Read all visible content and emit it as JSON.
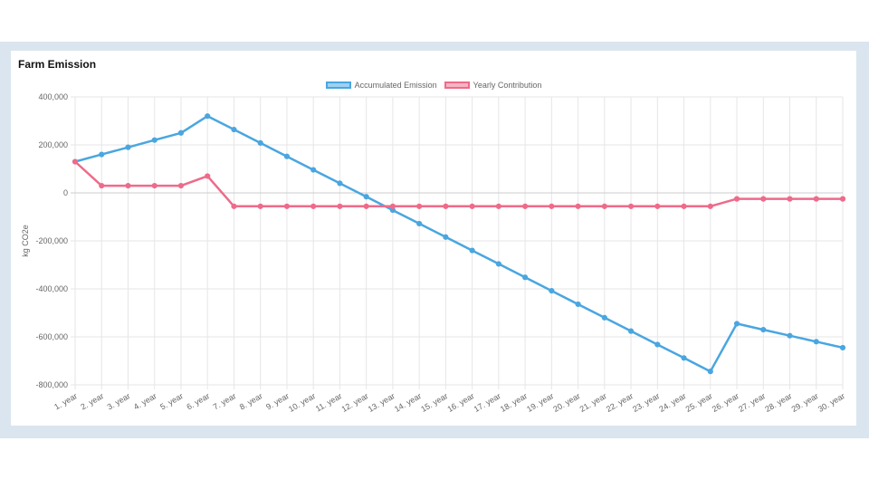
{
  "card": {
    "title": "Farm Emission"
  },
  "chart_data": {
    "type": "line",
    "title": "Farm Emission",
    "xlabel": "",
    "ylabel": "kg CO2e",
    "ylim": [
      -800000,
      400000
    ],
    "yticks": [
      400000,
      200000,
      0,
      -200000,
      -400000,
      -600000,
      -800000
    ],
    "ytick_labels": [
      "400,000",
      "200,000",
      "0",
      "-200,000",
      "-400,000",
      "-600,000",
      "-800,000"
    ],
    "grid": true,
    "legend_position": "top-center",
    "categories": [
      "1. year",
      "2. year",
      "3. year",
      "4. year",
      "5. year",
      "6. year",
      "7. year",
      "8. year",
      "9. year",
      "10. year",
      "11. year",
      "12. year",
      "13. year",
      "14. year",
      "15. year",
      "16. year",
      "17. year",
      "18. year",
      "19. year",
      "20. year",
      "21. year",
      "22. year",
      "23. year",
      "24. year",
      "25. year",
      "26. year",
      "27. year",
      "28. year",
      "29. year",
      "30. year"
    ],
    "series": [
      {
        "name": "Accumulated Emission",
        "color": "#4aa6e0",
        "fill": "#9fd0f0",
        "values": [
          130000,
          160000,
          190000,
          220000,
          250000,
          320000,
          264000,
          208000,
          152000,
          96000,
          40000,
          -16000,
          -72000,
          -128000,
          -184000,
          -240000,
          -296000,
          -352000,
          -408000,
          -464000,
          -520000,
          -576000,
          -632000,
          -688000,
          -744000,
          -545000,
          -570000,
          -595000,
          -620000,
          -645000
        ]
      },
      {
        "name": "Yearly Contribution",
        "color": "#ee6b8a",
        "fill": "#f7b3c2",
        "values": [
          130000,
          30000,
          30000,
          30000,
          30000,
          70000,
          -56000,
          -56000,
          -56000,
          -56000,
          -56000,
          -56000,
          -56000,
          -56000,
          -56000,
          -56000,
          -56000,
          -56000,
          -56000,
          -56000,
          -56000,
          -56000,
          -56000,
          -56000,
          -56000,
          -25000,
          -25000,
          -25000,
          -25000,
          -25000
        ]
      }
    ]
  }
}
